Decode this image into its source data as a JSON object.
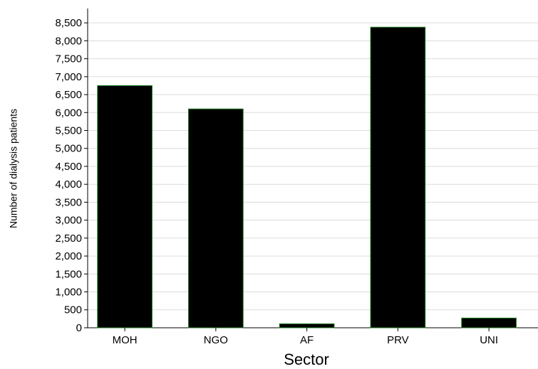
{
  "chart_data": {
    "type": "bar",
    "x_label": "Sector",
    "y_label": "Number of dialysis patients",
    "categories": [
      "MOH",
      "NGO",
      "AF",
      "PRV",
      "UNI"
    ],
    "values": [
      6750,
      6100,
      110,
      8380,
      270
    ],
    "color": "#000000",
    "edge_color": "#1a7a1a",
    "ylim": [
      0,
      8900
    ],
    "yticks": [
      0,
      500,
      {
        "value": 1000,
        "label": "1,000"
      },
      {
        "value": 1500,
        "label": "1,500"
      },
      {
        "value": 2000,
        "label": "2,000"
      },
      {
        "value": 2500,
        "label": "2,500"
      },
      {
        "value": 3000,
        "label": "3,000"
      },
      {
        "value": 3500,
        "label": "3,500"
      },
      {
        "value": 4000,
        "label": "4,000"
      },
      {
        "value": 4500,
        "label": "4,500"
      },
      {
        "value": 5000,
        "label": "5,000"
      },
      {
        "value": 5500,
        "label": "5,500"
      },
      {
        "value": 6000,
        "label": "6,000"
      },
      {
        "value": 6500,
        "label": "6,500"
      },
      {
        "value": 7000,
        "label": "7,000"
      },
      {
        "value": 7500,
        "label": "7,500"
      },
      {
        "value": 8000,
        "label": "8,000"
      },
      {
        "value": 8500,
        "label": "8,500"
      }
    ],
    "grid": true
  }
}
